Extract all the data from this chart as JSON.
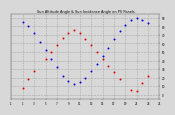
{
  "title": "Sun Altitude Angle & Sun Incidence Angle on PV Panels",
  "bg_color": "#d8d8d8",
  "plot_bg": "#d8d8d8",
  "grid_color": "#aaaaaa",
  "blue_color": "#0000dd",
  "red_color": "#dd0000",
  "ylim": [
    -5,
    95
  ],
  "blue_x": [
    1,
    2,
    3,
    4,
    5,
    6,
    7,
    8,
    9,
    10,
    11,
    12,
    13,
    14,
    15,
    16,
    17,
    18,
    19,
    20,
    21,
    22,
    23
  ],
  "blue_y": [
    85,
    80,
    72,
    62,
    52,
    42,
    32,
    22,
    16,
    12,
    15,
    20,
    28,
    36,
    45,
    55,
    65,
    74,
    82,
    88,
    90,
    88,
    84
  ],
  "red_x": [
    1,
    2,
    3,
    5,
    6,
    7,
    8,
    9,
    10,
    11,
    12,
    13,
    14,
    15,
    16,
    17,
    18,
    20,
    21,
    22,
    23
  ],
  "red_y": [
    8,
    18,
    28,
    42,
    50,
    58,
    66,
    72,
    76,
    72,
    65,
    58,
    50,
    42,
    34,
    26,
    18,
    6,
    4,
    14,
    22
  ],
  "xlim": [
    -1,
    25
  ],
  "xticks": [
    -1,
    1,
    3,
    5,
    7,
    9,
    11,
    13,
    15,
    17,
    19,
    21,
    23,
    25
  ],
  "xtick_labels": [
    "-1",
    "1",
    "3",
    "5",
    "7",
    "9",
    "11",
    "13",
    "15",
    "17",
    "19",
    "21",
    "23",
    "25"
  ],
  "yticks": [
    0,
    10,
    20,
    30,
    40,
    50,
    60,
    70,
    80,
    90
  ],
  "ytick_labels": [
    "0",
    "10.",
    "20.",
    "30.",
    "40.",
    "50.",
    "60.",
    "70.",
    "80.",
    "90."
  ]
}
